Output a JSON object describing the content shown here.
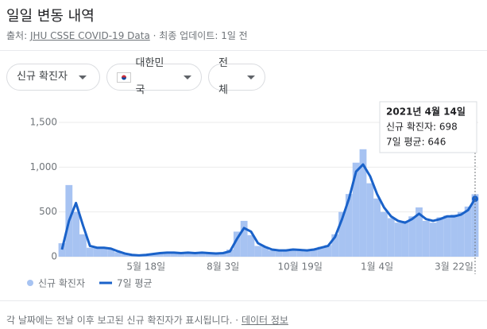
{
  "header": {
    "title": "일일 변동 내역",
    "source_label": "출처:",
    "source_link": "JHU CSSE COVID-19 Data",
    "separator": "·",
    "updated": "최종 업데이트: 1일 전"
  },
  "filters": [
    "신규 확진자",
    "대한민국",
    "전체"
  ],
  "chart_data": {
    "type": "bar",
    "categories": [
      null,
      null,
      null,
      null,
      null,
      null,
      null,
      null,
      null,
      null,
      null,
      null,
      "5월 18일",
      null,
      null,
      null,
      null,
      null,
      null,
      null,
      null,
      null,
      null,
      "8월 3일",
      null,
      null,
      null,
      null,
      null,
      null,
      null,
      null,
      null,
      null,
      "10월 19일",
      null,
      null,
      null,
      null,
      null,
      null,
      null,
      null,
      null,
      null,
      "1월 4일",
      null,
      null,
      null,
      null,
      null,
      null,
      null,
      null,
      null,
      null,
      "3월 22일",
      null,
      null,
      null
    ],
    "series": [
      {
        "name": "신규 확진자",
        "type": "bar",
        "color": "#a7c3f2",
        "values": [
          150,
          800,
          500,
          250,
          100,
          110,
          90,
          80,
          50,
          30,
          20,
          15,
          25,
          35,
          45,
          50,
          40,
          45,
          50,
          35,
          45,
          40,
          30,
          45,
          80,
          280,
          400,
          240,
          120,
          110,
          70,
          60,
          75,
          90,
          70,
          80,
          90,
          110,
          130,
          250,
          500,
          700,
          1050,
          1200,
          820,
          650,
          500,
          430,
          380,
          400,
          450,
          550,
          400,
          380,
          440,
          460,
          470,
          500,
          560,
          698
        ]
      },
      {
        "name": "7일 평균",
        "type": "line",
        "color": "#1a62c9",
        "values": [
          80,
          400,
          600,
          350,
          120,
          100,
          100,
          90,
          60,
          35,
          20,
          15,
          20,
          30,
          40,
          45,
          45,
          40,
          45,
          40,
          45,
          40,
          35,
          40,
          60,
          200,
          320,
          280,
          150,
          110,
          80,
          70,
          70,
          80,
          75,
          70,
          80,
          100,
          120,
          220,
          420,
          650,
          950,
          1030,
          900,
          700,
          550,
          450,
          400,
          380,
          420,
          480,
          420,
          400,
          420,
          450,
          450,
          470,
          520,
          646
        ]
      }
    ],
    "ylim": [
      0,
      1500
    ],
    "yticks": [
      0,
      500,
      {
        "value": 1000,
        "label": "1,000"
      },
      {
        "value": 1500,
        "label": "1,500"
      }
    ],
    "grid": true,
    "legend": "bottom",
    "tooltip": {
      "date": "2021년 4월 14일",
      "lines": [
        "신규 확진자: 698",
        "7일 평균: 646"
      ]
    }
  },
  "footer": {
    "note": "각 날짜에는 전날 이후 보고된 신규 확진자가 표시됩니다.",
    "separator": "·",
    "link": "데이터 정보"
  }
}
